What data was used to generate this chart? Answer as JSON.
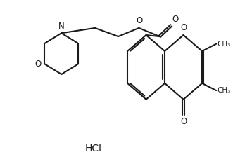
{
  "bg_color": "#ffffff",
  "line_color": "#1a1a1a",
  "lw": 1.5,
  "HCl_label": "HCl",
  "N_label": "N",
  "O_label": "O",
  "methyl_label": "CH₃"
}
